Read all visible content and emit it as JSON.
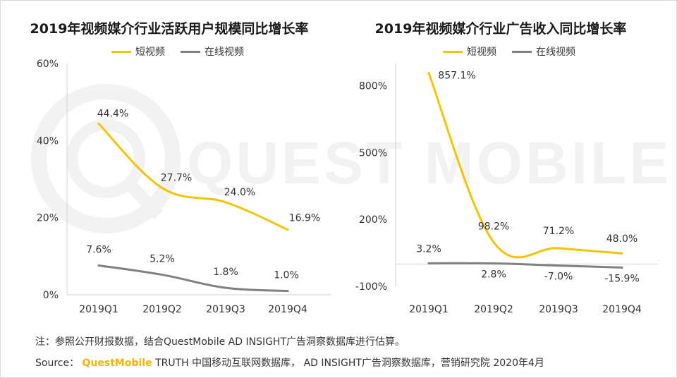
{
  "colors": {
    "short_video": "#f5c400",
    "online_video": "#808080",
    "brand": "#f5b400"
  },
  "watermark": {
    "text": "QUEST MOBILE"
  },
  "footer": {
    "note": "注：参照公开财报数据，结合QuestMobile AD INSIGHT广告洞察数据库进行估算。",
    "source_prefix": "Source：",
    "source_brand": "QuestMobile",
    "source_rest": "TRUTH 中国移动互联网数据库， AD INSIGHT广告洞察数据库，营销研究院 2020年4月"
  },
  "chart_data": [
    {
      "type": "line",
      "title": "2019年视频媒介行业活跃用户规模同比增长率",
      "categories": [
        "2019Q1",
        "2019Q2",
        "2019Q3",
        "2019Q4"
      ],
      "ylim": [
        0,
        60
      ],
      "yticks": [
        0,
        20,
        40,
        60
      ],
      "ytick_labels": [
        "0%",
        "20%",
        "40%",
        "60%"
      ],
      "legend_position": "top",
      "grid": false,
      "series": [
        {
          "name": "短视频",
          "color": "#f5c400",
          "values": [
            44.4,
            27.7,
            24.0,
            16.9
          ],
          "labels": [
            "44.4%",
            "27.7%",
            "24.0%",
            "16.9%"
          ]
        },
        {
          "name": "在线视频",
          "color": "#808080",
          "values": [
            7.6,
            5.2,
            1.8,
            1.0
          ],
          "labels": [
            "7.6%",
            "5.2%",
            "1.8%",
            "1.0%"
          ]
        }
      ]
    },
    {
      "type": "line",
      "title": "2019年视频媒介行业广告收入同比增长率",
      "categories": [
        "2019Q1",
        "2019Q2",
        "2019Q3",
        "2019Q4"
      ],
      "ylim": [
        -100,
        900
      ],
      "yticks": [
        -100,
        200,
        500,
        800
      ],
      "ytick_labels": [
        "-100%",
        "200%",
        "500%",
        "800%"
      ],
      "legend_position": "top",
      "grid": false,
      "series": [
        {
          "name": "短视频",
          "color": "#f5c400",
          "values": [
            857.1,
            98.2,
            71.2,
            48.0
          ],
          "labels": [
            "857.1%",
            "98.2%",
            "71.2%",
            "48.0%"
          ]
        },
        {
          "name": "在线视频",
          "color": "#808080",
          "values": [
            3.2,
            2.8,
            -7.0,
            -15.9
          ],
          "labels": [
            "3.2%",
            "2.8%",
            "-7.0%",
            "-15.9%"
          ]
        }
      ]
    }
  ]
}
